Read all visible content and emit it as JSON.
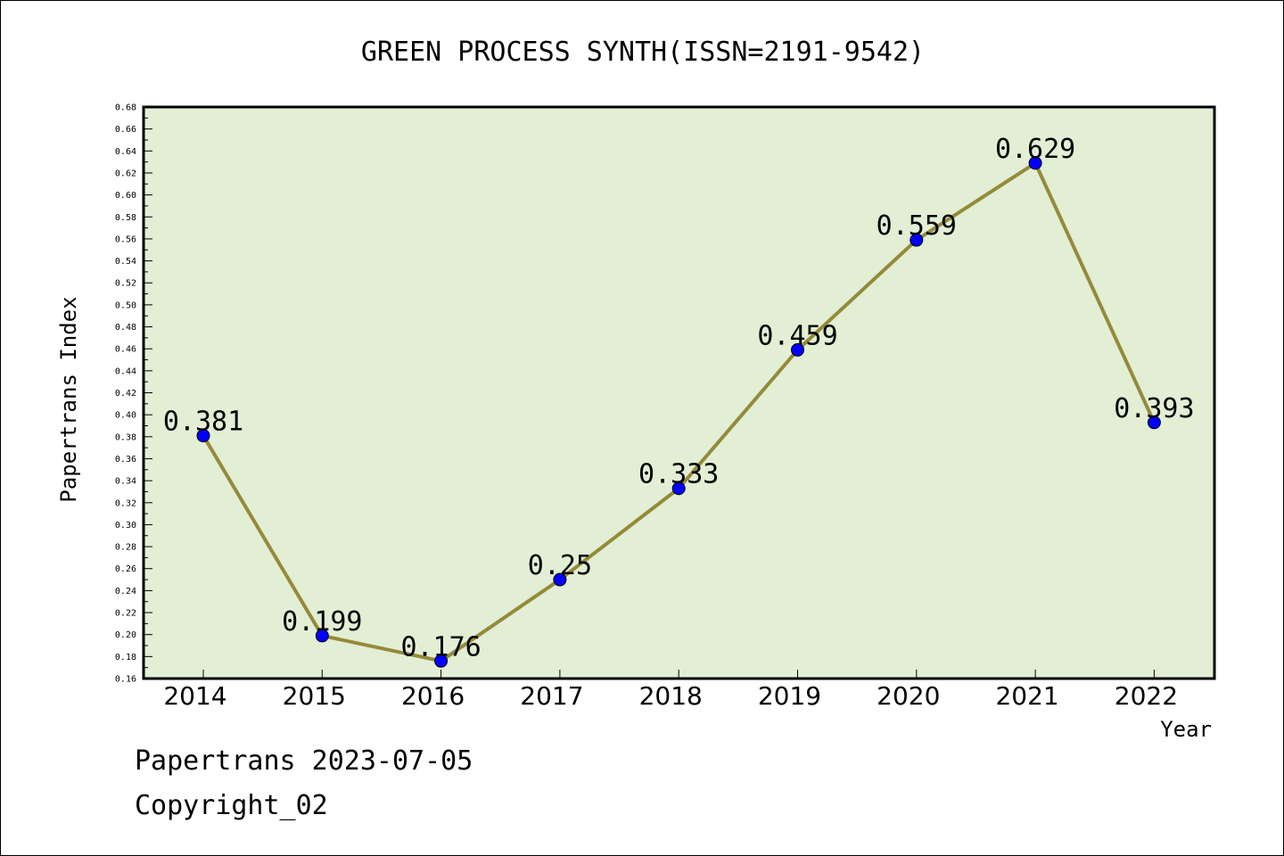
{
  "chart_data": {
    "type": "line",
    "title": "GREEN PROCESS SYNTH(ISSN=2191-9542)",
    "xlabel": "Year",
    "ylabel": "Papertrans Index",
    "categories": [
      "2014",
      "2015",
      "2016",
      "2017",
      "2018",
      "2019",
      "2020",
      "2021",
      "2022"
    ],
    "series": [
      {
        "values": [
          0.381,
          0.199,
          0.176,
          0.25,
          0.333,
          0.459,
          0.559,
          0.629,
          0.393
        ],
        "labels": [
          "0.381",
          "0.199",
          "0.176",
          "0.25",
          "0.333",
          "0.459",
          "0.559",
          "0.629",
          "0.393"
        ]
      }
    ],
    "ylim": [
      0.16,
      0.68
    ],
    "ytick_step": 0.02,
    "yticks": [
      "0.16",
      "0.18",
      "0.20",
      "0.22",
      "0.24",
      "0.26",
      "0.28",
      "0.30",
      "0.32",
      "0.34",
      "0.36",
      "0.38",
      "0.40",
      "0.42",
      "0.44",
      "0.46",
      "0.48",
      "0.50",
      "0.52",
      "0.54",
      "0.56",
      "0.58",
      "0.60",
      "0.62",
      "0.64",
      "0.66",
      "0.68"
    ],
    "grid": false,
    "colors": {
      "plot_background": "#e2efd5",
      "line": "#948a3a",
      "marker": "#0000ff",
      "marker_edge": "#000000"
    }
  },
  "footer": {
    "line1": "Papertrans 2023-07-05",
    "line2": "Copyright_02"
  }
}
